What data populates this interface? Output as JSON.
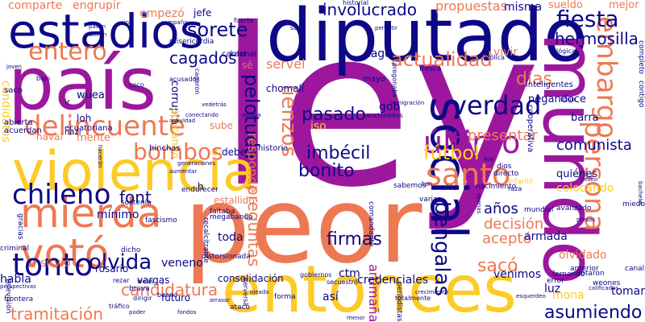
{
  "words": [
    {
      "text": "ley",
      "color": "#9c179e",
      "vertical": false
    },
    {
      "text": "peor",
      "color": "#ed7953",
      "vertical": false
    },
    {
      "text": "diputado",
      "color": "#0d0887",
      "vertical": false
    },
    {
      "text": "país",
      "color": "#9c179e",
      "vertical": false
    },
    {
      "text": "mundo",
      "color": "#9c179e",
      "vertical": true
    },
    {
      "text": "entonces",
      "color": "#fdca26",
      "vertical": false
    },
    {
      "text": "violencia",
      "color": "#fdca26",
      "vertical": false
    },
    {
      "text": "estadios",
      "color": "#0d0887",
      "vertical": false
    },
    {
      "text": "social",
      "color": "#0d0887",
      "vertical": true
    },
    {
      "text": "mierda",
      "color": "#ed7953",
      "vertical": false
    },
    {
      "text": "votó",
      "color": "#ed7953",
      "vertical": false
    },
    {
      "text": "santo",
      "color": "#ed7953",
      "vertical": false
    },
    {
      "text": "tonto",
      "color": "#0d0887",
      "vertical": false
    },
    {
      "text": "persona",
      "color": "#ed7953",
      "vertical": true
    },
    {
      "text": "embargo",
      "color": "#ed7953",
      "vertical": true
    },
    {
      "text": "delincuente",
      "color": "#ed7953",
      "vertical": false
    },
    {
      "text": "chileno",
      "color": "#0d0887",
      "vertical": false
    },
    {
      "text": "último",
      "color": "#9c179e",
      "vertical": false
    },
    {
      "text": "verdad",
      "color": "#0d0887",
      "vertical": false
    },
    {
      "text": "entero",
      "color": "#ed7953",
      "vertical": false
    },
    {
      "text": "bombos",
      "color": "#ed7953",
      "vertical": false
    },
    {
      "text": "actualidad",
      "color": "#ed7953",
      "vertical": false
    },
    {
      "text": "fiesta",
      "color": "#0d0887",
      "vertical": false
    },
    {
      "text": "fútbol",
      "color": "#fdca26",
      "vertical": false
    },
    {
      "text": "olvida",
      "color": "#0d0887",
      "vertical": false
    },
    {
      "text": "imbécil",
      "color": "#0d0887",
      "vertical": false
    },
    {
      "text": "pelotuda",
      "color": "#0d0887",
      "vertical": true
    },
    {
      "text": "lienzos",
      "color": "#ed7953",
      "vertical": true
    },
    {
      "text": "bengalas",
      "color": "#0d0887",
      "vertical": true
    },
    {
      "text": "pasado",
      "color": "#0d0887",
      "vertical": false
    },
    {
      "text": "bonito",
      "color": "#0d0887",
      "vertical": false
    },
    {
      "text": "días",
      "color": "#ed7953",
      "vertical": false
    },
    {
      "text": "sorete",
      "color": "#0d0887",
      "vertical": false
    },
    {
      "text": "cagados",
      "color": "#0d0887",
      "vertical": false
    },
    {
      "text": "firmas",
      "color": "#0d0887",
      "vertical": false
    },
    {
      "text": "involucrado",
      "color": "#0d0887",
      "vertical": false
    },
    {
      "text": "hermosilla",
      "color": "#0d0887",
      "vertical": false
    },
    {
      "text": "font",
      "color": "#0d0887",
      "vertical": false
    },
    {
      "text": "preguntas",
      "color": "#ed7953",
      "vertical": true
    },
    {
      "text": "candidatura",
      "color": "#ed7953",
      "vertical": false
    },
    {
      "text": "tramitación",
      "color": "#ed7953",
      "vertical": false
    },
    {
      "text": "asumiendo",
      "color": "#0d0887",
      "vertical": false
    },
    {
      "text": "sacó",
      "color": "#ed7953",
      "vertical": false
    },
    {
      "text": "aceptó",
      "color": "#ed7953",
      "vertical": false
    },
    {
      "text": "decisión",
      "color": "#ed7953",
      "vertical": false
    },
    {
      "text": "años",
      "color": "#0d0887",
      "vertical": false
    },
    {
      "text": "presentar",
      "color": "#ed7953",
      "vertical": false
    },
    {
      "text": "comunista",
      "color": "#0d0887",
      "vertical": false
    },
    {
      "text": "servel",
      "color": "#ed7953",
      "vertical": false
    },
    {
      "text": "responde",
      "color": "#ed7953",
      "vertical": true
    },
    {
      "text": "artimaña",
      "color": "#9c179e",
      "vertical": true
    },
    {
      "text": "propuestas",
      "color": "#ed7953",
      "vertical": false
    },
    {
      "text": "comparte",
      "color": "#ed7953",
      "vertical": false
    },
    {
      "text": "engrupir",
      "color": "#ed7953",
      "vertical": false
    },
    {
      "text": "empezó",
      "color": "#ed7953",
      "vertical": false
    },
    {
      "text": "misma",
      "color": "#0d0887",
      "vertical": false
    },
    {
      "text": "sueldo",
      "color": "#ed7953",
      "vertical": false
    },
    {
      "text": "mejor",
      "color": "#ed7953",
      "vertical": false
    },
    {
      "text": "vivir",
      "color": "#ed7953",
      "vertical": false
    },
    {
      "text": "cagó",
      "color": "#0d0887",
      "vertical": false
    },
    {
      "text": "negandoce",
      "color": "#0d0887",
      "vertical": false
    },
    {
      "text": "barra",
      "color": "#0d0887",
      "vertical": false
    },
    {
      "text": "gob",
      "color": "#0d0887",
      "vertical": false
    },
    {
      "text": "iso",
      "color": "#fdca26",
      "vertical": false
    },
    {
      "text": "wuea",
      "color": "#0d0887",
      "vertical": false
    },
    {
      "text": "corrupta",
      "color": "#0d0887",
      "vertical": true
    },
    {
      "text": "aplicando",
      "color": "#fdca26",
      "vertical": true
    },
    {
      "text": "mente",
      "color": "#ed7953",
      "vertical": false
    },
    {
      "text": "naval",
      "color": "#ed7953",
      "vertical": false
    },
    {
      "text": "sube",
      "color": "#ed7953",
      "vertical": false
    },
    {
      "text": "debe",
      "color": "#0d0887",
      "vertical": false
    },
    {
      "text": "h",
      "color": "#0d0887",
      "vertical": false
    },
    {
      "text": "estallido",
      "color": "#ed7953",
      "vertical": false
    },
    {
      "text": "colocando",
      "color": "#fdca26",
      "vertical": false
    },
    {
      "text": "quiénes",
      "color": "#0d0887",
      "vertical": false
    },
    {
      "text": "mínimo",
      "color": "#0d0887",
      "vertical": false
    },
    {
      "text": "toda",
      "color": "#0d0887",
      "vertical": false
    },
    {
      "text": "armada",
      "color": "#0d0887",
      "vertical": false
    },
    {
      "text": "olvidado",
      "color": "#ed7953",
      "vertical": false
    },
    {
      "text": "sirvió",
      "color": "#ed7953",
      "vertical": false
    },
    {
      "text": "habla",
      "color": "#0d0887",
      "vertical": false
    },
    {
      "text": "vargas",
      "color": "#0d0887",
      "vertical": false
    },
    {
      "text": "futuro",
      "color": "#0d0887",
      "vertical": false
    },
    {
      "text": "ctm",
      "color": "#0d0887",
      "vertical": false
    },
    {
      "text": "credenciales",
      "color": "#0d0887",
      "vertical": false
    },
    {
      "text": "venimos",
      "color": "#0d0887",
      "vertical": false
    },
    {
      "text": "luz",
      "color": "#0d0887",
      "vertical": false
    },
    {
      "text": "mona",
      "color": "#fdca26",
      "vertical": false
    },
    {
      "text": "tomar",
      "color": "#0d0887",
      "vertical": false
    },
    {
      "text": "así",
      "color": "#0d0887",
      "vertical": false
    },
    {
      "text": "consolidación",
      "color": "#0d0887",
      "vertical": false
    },
    {
      "text": "veneno",
      "color": "#0d0887",
      "vertical": false
    },
    {
      "text": "rosario",
      "color": "#0d0887",
      "vertical": false
    },
    {
      "text": "candidatos",
      "color": "#fdca26",
      "vertical": true
    },
    {
      "text": "jefe",
      "color": "#0d0887",
      "vertical": false
    },
    {
      "text": "sé",
      "color": "#ed7953",
      "vertical": false
    },
    {
      "text": "kast",
      "color": "#0d0887",
      "vertical": false
    },
    {
      "text": "cardenal",
      "color": "#0d0887",
      "vertical": false
    },
    {
      "text": "chomalí",
      "color": "#0d0887",
      "vertical": false
    },
    {
      "text": "mayo",
      "color": "#0d0887",
      "vertical": false
    },
    {
      "text": "saco",
      "color": "#0d0887",
      "vertical": false
    },
    {
      "text": "ir",
      "color": "#0d0887",
      "vertical": false
    },
    {
      "text": "loh",
      "color": "#0d0887",
      "vertical": false
    },
    {
      "text": "ecuatoriana",
      "color": "#0d0887",
      "vertical": false
    },
    {
      "text": "nazi",
      "color": "#0d0887",
      "vertical": false
    },
    {
      "text": "abierta",
      "color": "#0d0887",
      "vertical": false
    },
    {
      "text": "acuerdan",
      "color": "#0d0887",
      "vertical": false
    },
    {
      "text": "hinchas",
      "color": "#0d0887",
      "vertical": false
    },
    {
      "text": "historia",
      "color": "#0d0887",
      "vertical": false
    },
    {
      "text": "sabemos",
      "color": "#0d0887",
      "vertical": false
    },
    {
      "text": "ten",
      "color": "#0d0887",
      "vertical": false
    },
    {
      "text": "vivo",
      "color": "#0d0887",
      "vertical": false
    },
    {
      "text": "dios",
      "color": "#0d0887",
      "vertical": false
    },
    {
      "text": "directo",
      "color": "#0d0887",
      "vertical": false
    },
    {
      "text": "infantil",
      "color": "#fdca26",
      "vertical": false
    },
    {
      "text": "nacimiento",
      "color": "#0d0887",
      "vertical": false
    },
    {
      "text": "mundial",
      "color": "#0d0887",
      "vertical": false
    },
    {
      "text": "avanzado",
      "color": "#0d0887",
      "vertical": false
    },
    {
      "text": "fernando",
      "color": "#0d0887",
      "vertical": false
    },
    {
      "text": "anterior",
      "color": "#0d0887",
      "vertical": false
    },
    {
      "text": "canal",
      "color": "#0d0887",
      "vertical": false
    },
    {
      "text": "error",
      "color": "#0d0887",
      "vertical": false
    },
    {
      "text": "weones",
      "color": "#0d0887",
      "vertical": false
    },
    {
      "text": "votaron",
      "color": "#0d0887",
      "vertical": false
    },
    {
      "text": "gracias",
      "color": "#0d0887",
      "vertical": true
    },
    {
      "text": "criminal",
      "color": "#0d0887",
      "vertical": false
    },
    {
      "text": "frontera",
      "color": "#0d0887",
      "vertical": false
    },
    {
      "text": "televisión",
      "color": "#0d0887",
      "vertical": true
    },
    {
      "text": "miedo",
      "color": "#0d0887",
      "vertical": false
    },
    {
      "text": "forma",
      "color": "#0d0887",
      "vertical": false
    },
    {
      "text": "atacó",
      "color": "#0d0887",
      "vertical": false
    },
    {
      "text": "periodistas",
      "color": "#0d0887",
      "vertical": true
    },
    {
      "text": "comandante",
      "color": "#0d0887",
      "vertical": true
    },
    {
      "text": "varias",
      "color": "#0d0887",
      "vertical": false
    },
    {
      "text": "historial",
      "color": "#0d0887",
      "vertical": false
    },
    {
      "text": "lógica",
      "color": "#0d0887",
      "vertical": false
    },
    {
      "text": "inteligentes",
      "color": "#0d0887",
      "vertical": false
    },
    {
      "text": "cooperativa",
      "color": "#0d0887",
      "vertical": true
    },
    {
      "text": "contigo",
      "color": "#0d0887",
      "vertical": true
    },
    {
      "text": "completo",
      "color": "#0d0887",
      "vertical": true
    },
    {
      "text": "fresca",
      "color": "#0d0887",
      "vertical": false
    },
    {
      "text": "católica",
      "color": "#0d0887",
      "vertical": false
    },
    {
      "text": "fuerte",
      "color": "#0d0887",
      "vertical": false
    },
    {
      "text": "misericordia",
      "color": "#0d0887",
      "vertical": false
    },
    {
      "text": "sostenía",
      "color": "#0d0887",
      "vertical": false
    },
    {
      "text": "recalcitrante",
      "color": "#0d0887",
      "vertical": true
    },
    {
      "text": "distorsionada",
      "color": "#0d0887",
      "vertical": false
    },
    {
      "text": "fascismo",
      "color": "#0d0887",
      "vertical": false
    },
    {
      "text": "brava",
      "color": "#0d0887",
      "vertical": false
    },
    {
      "text": "faltaba",
      "color": "#0d0887",
      "vertical": false
    },
    {
      "text": "megabanda",
      "color": "#0d0887",
      "vertical": false
    },
    {
      "text": "endurecer",
      "color": "#0d0887",
      "vertical": false
    },
    {
      "text": "gobiernos",
      "color": "#0d0887",
      "vertical": false
    },
    {
      "text": "secuestró",
      "color": "#0d0887",
      "vertical": false
    },
    {
      "text": "totalmente",
      "color": "#0d0887",
      "vertical": false
    },
    {
      "text": "rezar",
      "color": "#0d0887",
      "vertical": false
    },
    {
      "text": "dicho",
      "color": "#0d0887",
      "vertical": false
    },
    {
      "text": "dirigir",
      "color": "#0d0887",
      "vertical": false
    },
    {
      "text": "tráfico",
      "color": "#0d0887",
      "vertical": false
    },
    {
      "text": "bueno",
      "color": "#0d0887",
      "vertical": false
    },
    {
      "text": "perversa",
      "color": "#0d0887",
      "vertical": true
    },
    {
      "text": "cagaron",
      "color": "#0d0887",
      "vertical": true
    },
    {
      "text": "pregonaba",
      "color": "#0d0887",
      "vertical": true
    },
    {
      "text": "sancionados",
      "color": "#0d0887",
      "vertical": false
    },
    {
      "text": "conectando",
      "color": "#0d0887",
      "vertical": false
    },
    {
      "text": "actividad",
      "color": "#0d0887",
      "vertical": false
    },
    {
      "text": "vedetrás",
      "color": "#0d0887",
      "vertical": false
    },
    {
      "text": "bajo",
      "color": "#0d0887",
      "vertical": false
    },
    {
      "text": "coco",
      "color": "#0d0887",
      "vertical": false
    },
    {
      "text": "weas",
      "color": "#0d0887",
      "vertical": false
    },
    {
      "text": "acusados",
      "color": "#0d0887",
      "vertical": false
    },
    {
      "text": "hacerán",
      "color": "#0d0887",
      "vertical": true
    },
    {
      "text": "trajo",
      "color": "#0d0887",
      "vertical": false
    },
    {
      "text": "inmigración",
      "color": "#0d0887",
      "vertical": false
    },
    {
      "text": "raza",
      "color": "#0d0887",
      "vertical": false
    },
    {
      "text": "apenas",
      "color": "#0d0887",
      "vertical": true
    },
    {
      "text": "bachelet",
      "color": "#0d0887",
      "vertical": true
    },
    {
      "text": "calificados",
      "color": "#0d0887",
      "vertical": false
    },
    {
      "text": "generaciones",
      "color": "#0d0887",
      "vertical": false
    },
    {
      "text": "perspectivas",
      "color": "#0d0887",
      "vertical": false
    },
    {
      "text": "joven",
      "color": "#0d0887",
      "vertical": false
    },
    {
      "text": "saca",
      "color": "#0d0887",
      "vertical": false
    },
    {
      "text": "permitir",
      "color": "#0d0887",
      "vertical": false
    },
    {
      "text": "deseo",
      "color": "#0d0887",
      "vertical": false
    },
    {
      "text": "presos",
      "color": "#0d0887",
      "vertical": false
    },
    {
      "text": "aumentar",
      "color": "#0d0887",
      "vertical": false
    },
    {
      "text": "ojeada",
      "color": "#0d0887",
      "vertical": false
    },
    {
      "text": "arrasar",
      "color": "#0d0887",
      "vertical": false
    },
    {
      "text": "poder",
      "color": "#0d0887",
      "vertical": false
    },
    {
      "text": "crecimiento",
      "color": "#0d0887",
      "vertical": false
    },
    {
      "text": "fondos",
      "color": "#0d0887",
      "vertical": false
    },
    {
      "text": "menor",
      "color": "#0d0887",
      "vertical": false
    },
    {
      "text": "esquerdeo",
      "color": "#0d0887",
      "vertical": false
    },
    {
      "text": "pasan",
      "color": "#0d0887",
      "vertical": false
    },
    {
      "text": "dieron",
      "color": "#0d0887",
      "vertical": false
    },
    {
      "text": "sino",
      "color": "#0d0887",
      "vertical": false
    },
    {
      "text": "campaña",
      "color": "#0d0887",
      "vertical": false
    },
    {
      "text": "odiaba",
      "color": "#0d0887",
      "vertical": false
    },
    {
      "text": "hoy",
      "color": "#0d0887",
      "vertical": false
    }
  ]
}
